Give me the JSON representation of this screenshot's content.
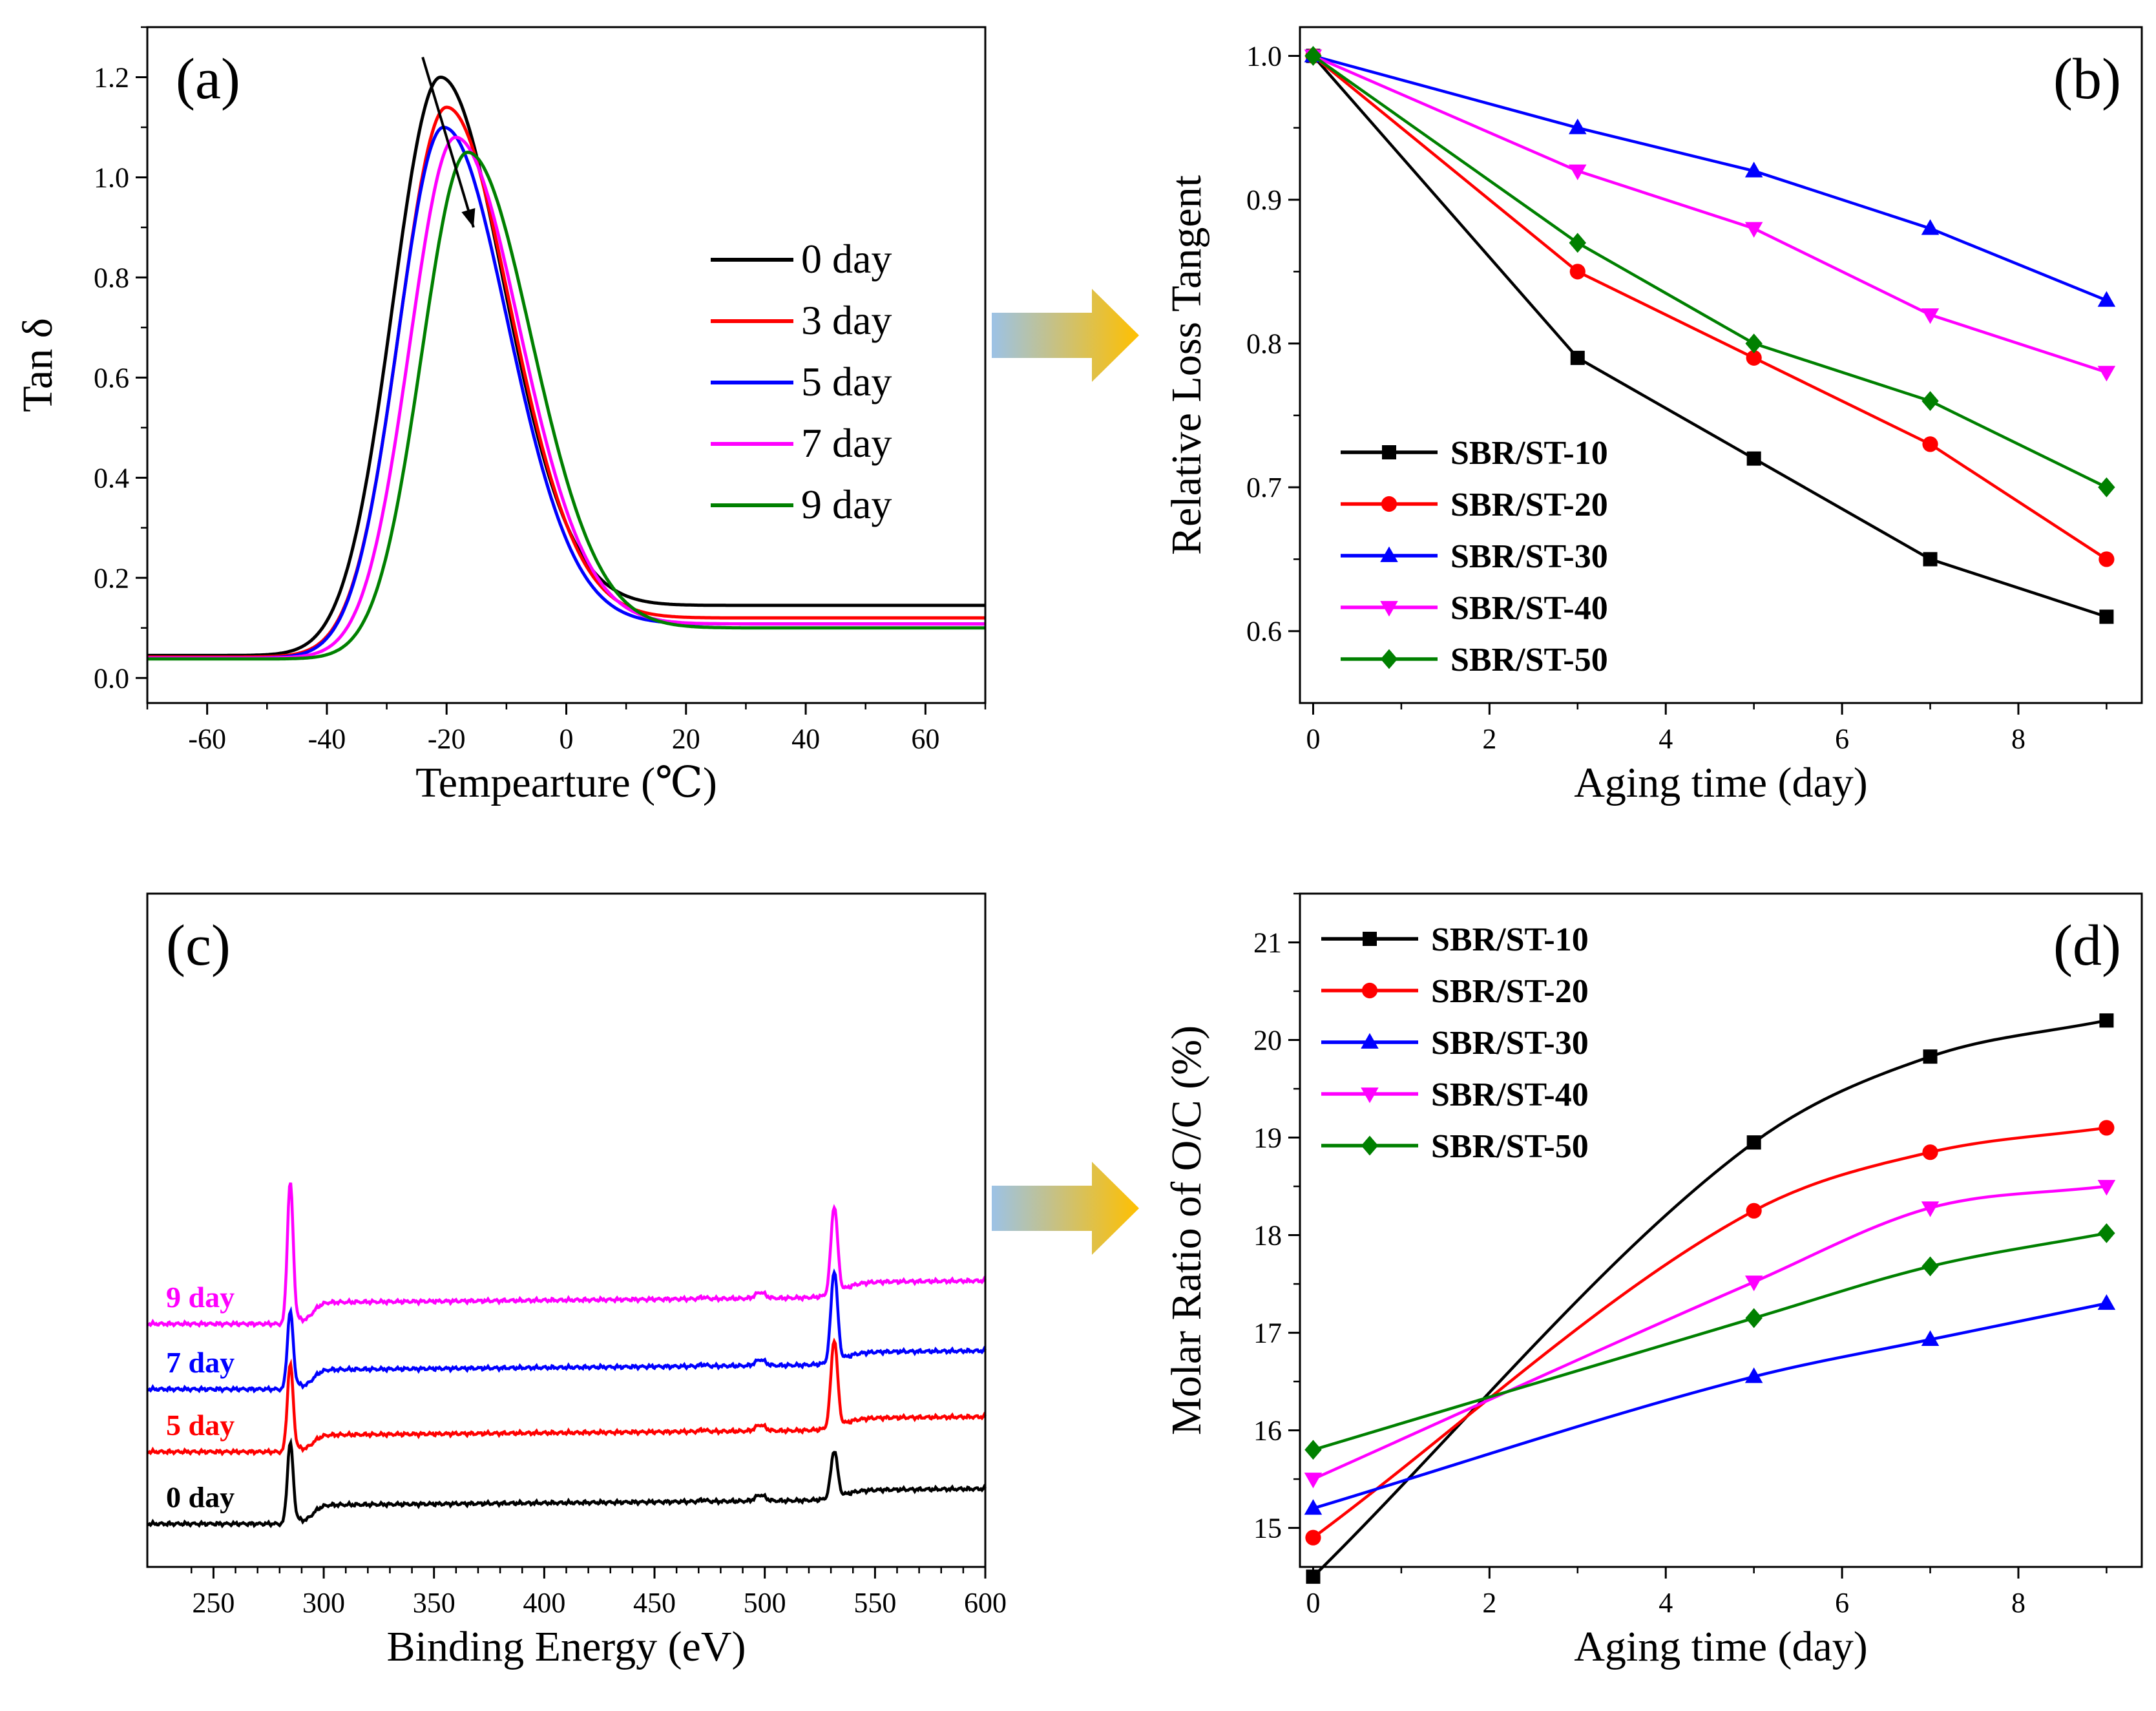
{
  "colors": {
    "black": "#000000",
    "red": "#ff0000",
    "blue": "#0000ff",
    "magenta": "#ff00ff",
    "green": "#008000",
    "arrow_start": "#9cc2e6",
    "arrow_end": "#ffc000"
  },
  "arrows": [
    {
      "name": "arrow-a-to-b"
    },
    {
      "name": "arrow-c-to-d"
    }
  ],
  "chart_data": [
    {
      "id": "a",
      "type": "line",
      "panel_label": "(a)",
      "title": "",
      "xlabel": "Tempearture (℃)",
      "ylabel": "Tan δ",
      "xlim": [
        -70,
        70
      ],
      "ylim": [
        -0.05,
        1.3
      ],
      "xticks": [
        -60,
        -40,
        -20,
        0,
        20,
        40,
        60
      ],
      "yticks": [
        0.0,
        0.2,
        0.4,
        0.6,
        0.8,
        1.0,
        1.2
      ],
      "xtick_labels": [
        "-60",
        "-40",
        "-20",
        "0",
        "20",
        "40",
        "60"
      ],
      "ytick_labels": [
        "0.0",
        "0.2",
        "0.4",
        "0.6",
        "0.8",
        "1.0",
        "1.2"
      ],
      "legend_position": "right",
      "series": [
        {
          "name": "0 day",
          "color": "#000000",
          "peak_x": -21,
          "peak_y": 1.2,
          "base_left": 0.045,
          "base_right": 0.145,
          "w_left": 8.0,
          "w_right": 11.0
        },
        {
          "name": "3 day",
          "color": "#ff0000",
          "peak_x": -20,
          "peak_y": 1.14,
          "base_left": 0.042,
          "base_right": 0.12,
          "w_left": 7.8,
          "w_right": 11.0
        },
        {
          "name": "5 day",
          "color": "#0000ff",
          "peak_x": -20.5,
          "peak_y": 1.1,
          "base_left": 0.04,
          "base_right": 0.108,
          "w_left": 7.6,
          "w_right": 11.0
        },
        {
          "name": "7 day",
          "color": "#ff00ff",
          "peak_x": -18.5,
          "peak_y": 1.08,
          "base_left": 0.04,
          "base_right": 0.108,
          "w_left": 7.6,
          "w_right": 11.0
        },
        {
          "name": "9 day",
          "color": "#008000",
          "peak_x": -16.5,
          "peak_y": 1.05,
          "base_left": 0.038,
          "base_right": 0.1,
          "w_left": 7.6,
          "w_right": 11.0
        }
      ],
      "annotations": [
        {
          "type": "arrow",
          "from": [
            -24,
            1.24
          ],
          "to": [
            -15.5,
            0.9
          ]
        }
      ]
    },
    {
      "id": "b",
      "type": "line",
      "panel_label": "(b)",
      "title": "",
      "xlabel": "Aging time (day)",
      "ylabel": "Relative Loss Tangent",
      "xlim": [
        -0.15,
        9.4
      ],
      "ylim": [
        0.55,
        1.02
      ],
      "xticks": [
        0,
        2,
        4,
        6,
        8
      ],
      "yticks": [
        0.6,
        0.7,
        0.8,
        0.9,
        1.0
      ],
      "xtick_labels": [
        "0",
        "2",
        "4",
        "6",
        "8"
      ],
      "ytick_labels": [
        "0.6",
        "0.7",
        "0.8",
        "0.9",
        "1.0"
      ],
      "legend_position": "bottom-left",
      "x": [
        0,
        3,
        5,
        7,
        9
      ],
      "series": [
        {
          "name": "SBR/ST-10",
          "color": "#000000",
          "marker": "square",
          "values": [
            1.0,
            0.79,
            0.72,
            0.65,
            0.61
          ]
        },
        {
          "name": "SBR/ST-20",
          "color": "#ff0000",
          "marker": "circle",
          "values": [
            1.0,
            0.85,
            0.79,
            0.73,
            0.65
          ]
        },
        {
          "name": "SBR/ST-30",
          "color": "#0000ff",
          "marker": "triangle-up",
          "values": [
            1.0,
            0.95,
            0.92,
            0.88,
            0.83
          ]
        },
        {
          "name": "SBR/ST-40",
          "color": "#ff00ff",
          "marker": "triangle-down",
          "values": [
            1.0,
            0.92,
            0.88,
            0.82,
            0.78
          ]
        },
        {
          "name": "SBR/ST-50",
          "color": "#008000",
          "marker": "diamond",
          "values": [
            1.0,
            0.87,
            0.8,
            0.76,
            0.7
          ]
        }
      ]
    },
    {
      "id": "c",
      "type": "line",
      "panel_label": "(c)",
      "title": "",
      "xlabel": "Binding Energy (eV)",
      "ylabel": "",
      "xlim": [
        220,
        600
      ],
      "ylim": [
        0,
        100
      ],
      "xticks": [
        250,
        300,
        350,
        400,
        450,
        500,
        550,
        600
      ],
      "xtick_labels": [
        "250",
        "300",
        "350",
        "400",
        "450",
        "500",
        "550",
        "600"
      ],
      "legend_position": "inline-left",
      "series": [
        {
          "name": "0 day",
          "color": "#000000",
          "offset": 6.4,
          "c_peak": 12.0,
          "o_peak": 7.0,
          "step_c": 2.8,
          "step_o": 1.5
        },
        {
          "name": "5 day",
          "color": "#ff0000",
          "offset": 17.1,
          "c_peak": 13.0,
          "o_peak": 13.0,
          "step_c": 2.5,
          "step_o": 1.8
        },
        {
          "name": "7 day",
          "color": "#0000ff",
          "offset": 26.4,
          "c_peak": 11.5,
          "o_peak": 13.5,
          "step_c": 2.9,
          "step_o": 1.9
        },
        {
          "name": "9 day",
          "color": "#ff00ff",
          "offset": 36.1,
          "c_peak": 21.0,
          "o_peak": 13.0,
          "step_c": 3.2,
          "step_o": 2.3
        }
      ]
    },
    {
      "id": "d",
      "type": "line",
      "panel_label": "(d)",
      "title": "",
      "xlabel": "Aging time (day)",
      "ylabel": "Molar Ratio of O/C (%)",
      "xlim": [
        -0.15,
        9.4
      ],
      "ylim": [
        14.6,
        21.5
      ],
      "xticks": [
        0,
        2,
        4,
        6,
        8
      ],
      "yticks": [
        15,
        16,
        17,
        18,
        19,
        20,
        21
      ],
      "xtick_labels": [
        "0",
        "2",
        "4",
        "6",
        "8"
      ],
      "ytick_labels": [
        "15",
        "16",
        "17",
        "18",
        "19",
        "20",
        "21"
      ],
      "legend_position": "top-left",
      "x": [
        0,
        5,
        7,
        9
      ],
      "series": [
        {
          "name": "SBR/ST-10",
          "color": "#000000",
          "marker": "square",
          "values": [
            14.5,
            18.95,
            19.83,
            20.2
          ]
        },
        {
          "name": "SBR/ST-20",
          "color": "#ff0000",
          "marker": "circle",
          "values": [
            14.9,
            18.25,
            18.85,
            19.1
          ]
        },
        {
          "name": "SBR/ST-30",
          "color": "#0000ff",
          "marker": "triangle-up",
          "values": [
            15.2,
            16.55,
            16.93,
            17.3
          ]
        },
        {
          "name": "SBR/ST-40",
          "color": "#ff00ff",
          "marker": "triangle-down",
          "values": [
            15.5,
            17.52,
            18.28,
            18.5
          ]
        },
        {
          "name": "SBR/ST-50",
          "color": "#008000",
          "marker": "diamond",
          "values": [
            15.8,
            17.15,
            17.68,
            18.02
          ]
        }
      ]
    }
  ]
}
